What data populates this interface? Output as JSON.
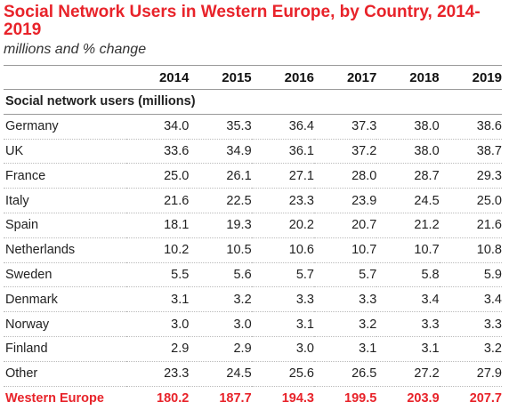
{
  "chart_data": {
    "type": "table",
    "title": "Social Network Users in Western Europe, by Country, 2014-2019",
    "subtitle": "millions and % change",
    "columns": [
      "2014",
      "2015",
      "2016",
      "2017",
      "2018",
      "2019"
    ],
    "section_label": "Social network users (millions)",
    "rows": [
      {
        "label": "Germany",
        "values": [
          "34.0",
          "35.3",
          "36.4",
          "37.3",
          "38.0",
          "38.6"
        ]
      },
      {
        "label": "UK",
        "values": [
          "33.6",
          "34.9",
          "36.1",
          "37.2",
          "38.0",
          "38.7"
        ]
      },
      {
        "label": "France",
        "values": [
          "25.0",
          "26.1",
          "27.1",
          "28.0",
          "28.7",
          "29.3"
        ]
      },
      {
        "label": "Italy",
        "values": [
          "21.6",
          "22.5",
          "23.3",
          "23.9",
          "24.5",
          "25.0"
        ]
      },
      {
        "label": "Spain",
        "values": [
          "18.1",
          "19.3",
          "20.2",
          "20.7",
          "21.2",
          "21.6"
        ]
      },
      {
        "label": "Netherlands",
        "values": [
          "10.2",
          "10.5",
          "10.6",
          "10.7",
          "10.7",
          "10.8"
        ]
      },
      {
        "label": "Sweden",
        "values": [
          "5.5",
          "5.6",
          "5.7",
          "5.7",
          "5.8",
          "5.9"
        ]
      },
      {
        "label": "Denmark",
        "values": [
          "3.1",
          "3.2",
          "3.3",
          "3.3",
          "3.4",
          "3.4"
        ]
      },
      {
        "label": "Norway",
        "values": [
          "3.0",
          "3.0",
          "3.1",
          "3.2",
          "3.3",
          "3.3"
        ]
      },
      {
        "label": "Finland",
        "values": [
          "2.9",
          "2.9",
          "3.0",
          "3.1",
          "3.1",
          "3.2"
        ]
      },
      {
        "label": "Other",
        "values": [
          "23.3",
          "24.5",
          "25.6",
          "26.5",
          "27.2",
          "27.9"
        ]
      }
    ],
    "total": {
      "label": "Western Europe",
      "values": [
        "180.2",
        "187.7",
        "194.3",
        "199.5",
        "203.9",
        "207.7"
      ]
    },
    "colors": {
      "accent": "#e8232a"
    }
  }
}
